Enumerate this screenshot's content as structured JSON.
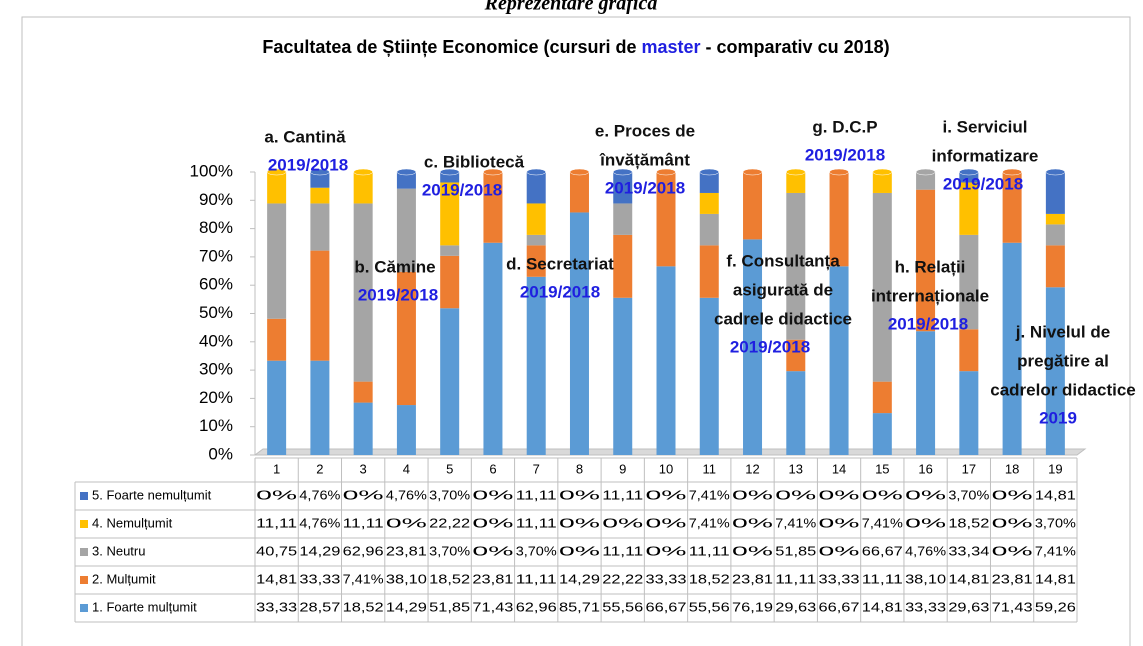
{
  "chart_data": {
    "type": "bar",
    "stacking": "percent",
    "heading": "Reprezentare grafică",
    "title_parts": [
      "Facultatea de Științe Economice (cursuri de ",
      "master",
      " - comparativ cu 2018)"
    ],
    "categories": [
      "1",
      "2",
      "3",
      "4",
      "5",
      "6",
      "7",
      "8",
      "9",
      "10",
      "11",
      "12",
      "13",
      "14",
      "15",
      "16",
      "17",
      "18",
      "19"
    ],
    "ylim": [
      0,
      100
    ],
    "yticks": [
      {
        "value": 0,
        "label": "0%"
      },
      {
        "value": 10,
        "label": "10%"
      },
      {
        "value": 20,
        "label": "20%"
      },
      {
        "value": 30,
        "label": "30%"
      },
      {
        "value": 40,
        "label": "40%"
      },
      {
        "value": 50,
        "label": "50%"
      },
      {
        "value": 60,
        "label": "60%"
      },
      {
        "value": 70,
        "label": "70%"
      },
      {
        "value": 80,
        "label": "80%"
      },
      {
        "value": 90,
        "label": "90%"
      },
      {
        "value": 100,
        "label": "100%"
      }
    ],
    "series": [
      {
        "name": "1. Foarte mulțumit",
        "color": "#5b9bd5",
        "values": [
          33.33,
          28.57,
          18.52,
          14.29,
          51.85,
          71.43,
          62.96,
          85.71,
          55.56,
          66.67,
          55.56,
          76.19,
          29.63,
          66.67,
          14.81,
          33.33,
          29.63,
          71.43,
          59.26
        ],
        "value_labels": [
          "33,33",
          "28,57",
          "18,52",
          "14,29",
          "51,85",
          "71,43",
          "62,96",
          "85,71",
          "55,56",
          "66,67",
          "55,56",
          "76,19",
          "29,63",
          "66,67",
          "14,81",
          "33,33",
          "29,63",
          "71,43",
          "59,26"
        ]
      },
      {
        "name": "2. Mulțumit",
        "color": "#ed7d31",
        "values": [
          14.81,
          33.33,
          7.41,
          38.1,
          18.52,
          23.81,
          11.11,
          14.29,
          22.22,
          33.33,
          18.52,
          23.81,
          11.11,
          33.33,
          11.11,
          38.1,
          14.81,
          23.81,
          14.81
        ],
        "value_labels": [
          "14,81",
          "33,33",
          "7,41%",
          "38,10",
          "18,52",
          "23,81",
          "11,11",
          "14,29",
          "22,22",
          "33,33",
          "18,52",
          "23,81",
          "11,11",
          "33,33",
          "11,11",
          "38,10",
          "14,81",
          "23,81",
          "14,81"
        ]
      },
      {
        "name": "3. Neutru",
        "color": "#a5a5a5",
        "values": [
          40.75,
          14.29,
          62.96,
          23.81,
          3.7,
          0,
          3.7,
          0,
          11.11,
          0,
          11.11,
          0,
          51.85,
          0,
          66.67,
          4.76,
          33.34,
          0,
          7.41
        ],
        "value_labels": [
          "40,75",
          "14,29",
          "62,96",
          "23,81",
          "3,70%",
          "0%",
          "3,70%",
          "0%",
          "11,11",
          "0%",
          "11,11",
          "0%",
          "51,85",
          "0%",
          "66,67",
          "4,76%",
          "33,34",
          "0%",
          "7,41%"
        ]
      },
      {
        "name": "4. Nemulțumit",
        "color": "#ffc000",
        "values": [
          11.11,
          4.76,
          11.11,
          0,
          22.22,
          0,
          11.11,
          0,
          0,
          0,
          7.41,
          0,
          7.41,
          0,
          7.41,
          0,
          18.52,
          0,
          3.7
        ],
        "value_labels": [
          "11,11",
          "4,76%",
          "11,11",
          "0%",
          "22,22",
          "0%",
          "11,11",
          "0%",
          "0%",
          "0%",
          "7,41%",
          "0%",
          "7,41%",
          "0%",
          "7,41%",
          "0%",
          "18,52",
          "0%",
          "3,70%"
        ]
      },
      {
        "name": "5. Foarte nemulțumit",
        "color": "#4472c4",
        "values": [
          0,
          4.76,
          0,
          4.76,
          3.7,
          0,
          11.11,
          0,
          11.11,
          0,
          7.41,
          0,
          0,
          0,
          0,
          0,
          3.7,
          0,
          14.81
        ],
        "value_labels": [
          "0%",
          "4,76%",
          "0%",
          "4,76%",
          "3,70%",
          "0%",
          "11,11",
          "0%",
          "11,11",
          "0%",
          "7,41%",
          "0%",
          "0%",
          "0%",
          "0%",
          "0%",
          "3,70%",
          "0%",
          "14,81"
        ]
      }
    ],
    "annotations": [
      {
        "lines": [
          "a. Cantină"
        ],
        "period": "2019/2018"
      },
      {
        "lines": [
          "b. Cămine"
        ],
        "period": "2019/2018"
      },
      {
        "lines": [
          "c. Bibliotecă"
        ],
        "period": "2019/2018"
      },
      {
        "lines": [
          "d. Secretariat"
        ],
        "period": "2019/2018"
      },
      {
        "lines": [
          "e. Proces de",
          "învățământ"
        ],
        "period": "2019/2018"
      },
      {
        "lines": [
          "f. Consultanța",
          "asigurată de",
          "cadrele didactice"
        ],
        "period": "2019/2018"
      },
      {
        "lines": [
          "g. D.C.P"
        ],
        "period": "2019/2018"
      },
      {
        "lines": [
          "h. Relații",
          "intrernaționale"
        ],
        "period": "2019/2018"
      },
      {
        "lines": [
          "i. Serviciul",
          "informatizare"
        ],
        "period": "2019/2018"
      },
      {
        "lines": [
          "j. Nivelul de",
          "pregătire al",
          "cadrelor didactice"
        ],
        "period": "2019"
      }
    ]
  }
}
